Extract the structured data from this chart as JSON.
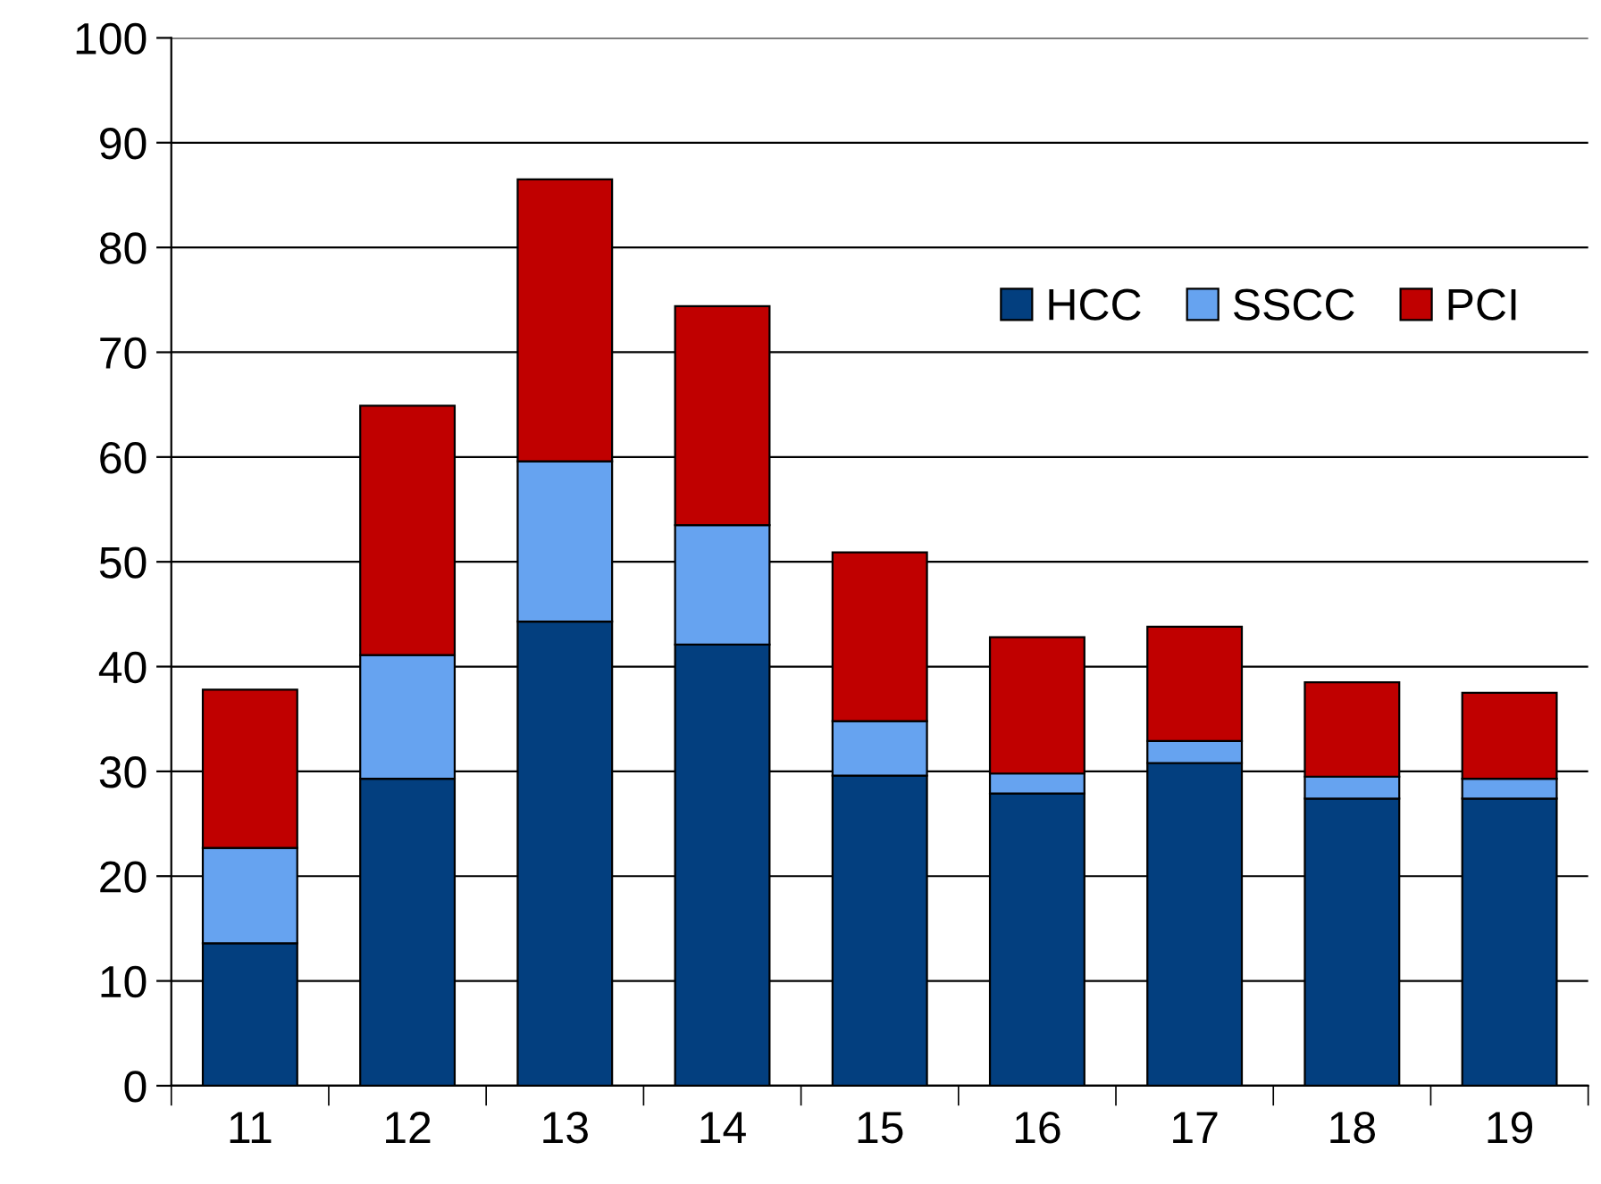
{
  "chart_data": {
    "type": "bar",
    "stacked": true,
    "categories": [
      "11",
      "12",
      "13",
      "14",
      "15",
      "16",
      "17",
      "18",
      "19"
    ],
    "series": [
      {
        "name": "HCC",
        "color": "#033f7f",
        "values": [
          13.6,
          29.3,
          44.3,
          42.1,
          29.6,
          27.9,
          30.8,
          27.4,
          27.4
        ]
      },
      {
        "name": "SSCC",
        "color": "#66a3f0",
        "values": [
          9.1,
          11.8,
          15.3,
          11.4,
          5.2,
          1.9,
          2.1,
          2.1,
          1.9
        ]
      },
      {
        "name": "PCI",
        "color": "#c00000",
        "values": [
          15.1,
          23.8,
          26.9,
          20.9,
          16.1,
          13.0,
          10.9,
          9.0,
          8.2
        ]
      }
    ],
    "ylim": [
      0,
      100
    ],
    "yticks": [
      0,
      10,
      20,
      30,
      40,
      50,
      60,
      70,
      80,
      90,
      100
    ],
    "grid": "y",
    "legend": "top right"
  }
}
